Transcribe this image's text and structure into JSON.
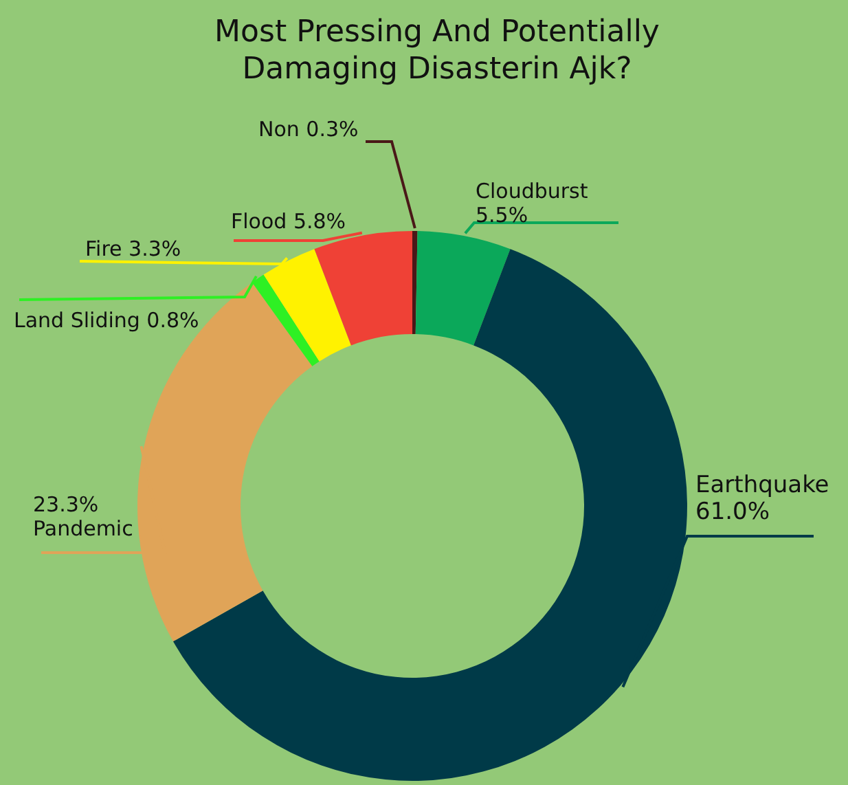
{
  "chart_data": {
    "type": "donut",
    "title": "Most Pressing And Potentially Damaging Disasterin Ajk?",
    "categories": [
      "Non",
      "Cloudburst",
      "Earthquake",
      "Pandemic",
      "Land Sliding",
      "Fire",
      "Flood"
    ],
    "values": [
      0.3,
      5.5,
      61.0,
      23.3,
      0.8,
      3.3,
      5.8
    ],
    "colors": [
      "#4a1818",
      "#0ba85a",
      "#003a48",
      "#e0a458",
      "#2ef024",
      "#fff200",
      "#ef4136"
    ],
    "value_labels": [
      "0.3%",
      "5.5%",
      "61.0%",
      "23.3%",
      "0.8%",
      "3.3%",
      "5.8%"
    ]
  }
}
